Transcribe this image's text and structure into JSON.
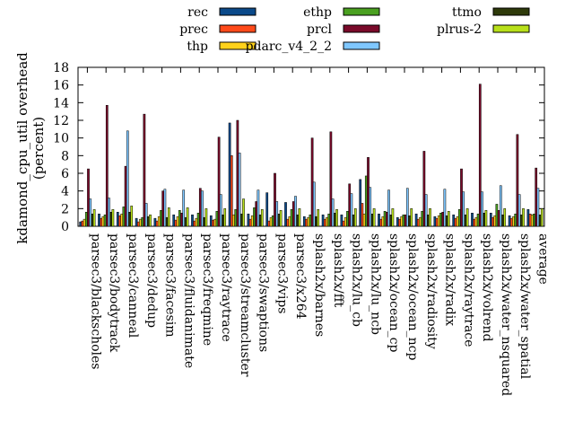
{
  "chart_data": {
    "type": "bar",
    "ylabel": "kdamond_cpu_util overhead (percent)",
    "ylabel_lines": [
      "kdamond_cpu_util overhead",
      "(percent)"
    ],
    "ylim": [
      0,
      18
    ],
    "yticks": [
      0,
      2,
      4,
      6,
      8,
      10,
      12,
      14,
      16,
      18
    ],
    "legend_position": "top",
    "categories": [
      "parsec3/blackscholes",
      "parsec3/bodytrack",
      "parsec3/canneal",
      "parsec3/dedup",
      "parsec3/facesim",
      "parsec3/fluidanimate",
      "parsec3/freqmine",
      "parsec3/raytrace",
      "parsec3/streamcluster",
      "parsec3/swaptions",
      "parsec3/vips",
      "parsec3/x264",
      "splash2x/barnes",
      "splash2x/fft",
      "splash2x/lu_cb",
      "splash2x/lu_ncb",
      "splash2x/ocean_cp",
      "splash2x/ocean_ncp",
      "splash2x/radiosity",
      "splash2x/radix",
      "splash2x/raytrace",
      "splash2x/volrend",
      "splash2x/water_nsquared",
      "splash2x/water_spatial",
      "average"
    ],
    "series": [
      {
        "name": "rec",
        "color": "#0b4a8a",
        "values": [
          0.5,
          1.4,
          1.6,
          0.9,
          0.9,
          1.3,
          1.3,
          1.2,
          11.7,
          1.4,
          3.8,
          2.7,
          1.1,
          1.3,
          1.3,
          5.3,
          1.4,
          1.0,
          1.4,
          1.1,
          1.3,
          1.5,
          1.5,
          1.2,
          1.9
        ]
      },
      {
        "name": "prec",
        "color": "#ff4a1a",
        "values": [
          0.6,
          0.9,
          1.2,
          0.5,
          0.6,
          0.7,
          0.6,
          0.7,
          8.0,
          0.8,
          0.6,
          0.8,
          0.8,
          0.8,
          0.6,
          2.6,
          0.8,
          0.8,
          0.8,
          0.9,
          0.9,
          0.8,
          1.0,
          0.9,
          1.4
        ]
      },
      {
        "name": "thp",
        "color": "#ffd11a",
        "values": [
          0.8,
          1.1,
          1.4,
          0.8,
          1.1,
          1.1,
          0.9,
          0.8,
          1.3,
          1.2,
          1.0,
          1.1,
          1.0,
          1.0,
          1.0,
          1.4,
          1.1,
          1.1,
          1.0,
          1.2,
          1.1,
          1.0,
          1.2,
          1.1,
          1.3
        ]
      },
      {
        "name": "ethp",
        "color": "#4aa020",
        "values": [
          1.6,
          1.3,
          2.2,
          1.0,
          1.8,
          1.8,
          1.5,
          1.7,
          1.9,
          2.1,
          1.2,
          1.9,
          1.3,
          1.4,
          1.7,
          5.7,
          1.7,
          1.3,
          1.7,
          1.5,
          1.9,
          1.4,
          2.5,
          1.4,
          1.4
        ]
      },
      {
        "name": "prcl",
        "color": "#7a0a2a",
        "values": [
          6.5,
          13.7,
          6.8,
          12.7,
          4.0,
          1.5,
          4.3,
          10.1,
          12.0,
          2.8,
          6.0,
          2.8,
          10.0,
          10.7,
          4.8,
          7.8,
          1.6,
          1.3,
          8.5,
          1.6,
          6.5,
          16.1,
          1.8,
          10.4,
          6.6
        ]
      },
      {
        "name": "pdarc_v4_2_2",
        "color": "#7fc7ff",
        "values": [
          3.1,
          3.2,
          10.8,
          2.6,
          4.2,
          4.1,
          4.0,
          3.6,
          8.3,
          4.1,
          2.8,
          3.4,
          5.0,
          3.1,
          3.7,
          4.4,
          4.1,
          4.3,
          3.6,
          4.2,
          3.9,
          3.9,
          4.6,
          3.6,
          4.3
        ]
      },
      {
        "name": "ttmo",
        "color": "#2e3a0a",
        "values": [
          1.4,
          1.6,
          1.6,
          1.1,
          1.0,
          1.0,
          1.0,
          1.3,
          1.4,
          1.3,
          1.4,
          1.3,
          1.1,
          1.5,
          1.3,
          1.4,
          1.3,
          1.2,
          1.3,
          1.2,
          1.3,
          1.5,
          1.3,
          1.3,
          1.3
        ]
      },
      {
        "name": "plrus-2",
        "color": "#b8e01a",
        "values": [
          1.9,
          1.9,
          2.3,
          1.3,
          2.1,
          2.1,
          2.0,
          2.0,
          3.1,
          1.9,
          1.8,
          2.0,
          1.9,
          1.9,
          2.0,
          2.0,
          2.0,
          2.0,
          2.0,
          1.7,
          2.0,
          1.8,
          2.0,
          2.0,
          2.0
        ]
      }
    ]
  }
}
